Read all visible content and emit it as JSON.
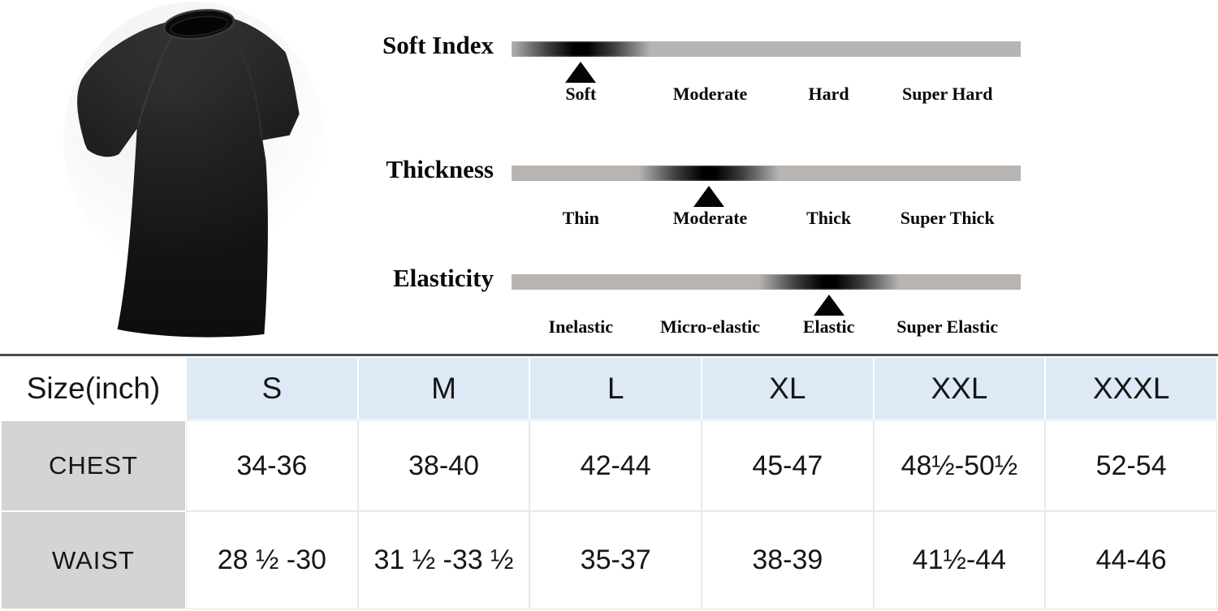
{
  "product_image": {
    "alt": "black crew-neck short-sleeve t-shirt"
  },
  "scales": {
    "bar_color": "#b7b4b2",
    "marker_color": "#050505",
    "rows": [
      {
        "title": "Soft Index",
        "marker_pos": 13.6,
        "labels": [
          {
            "text": "Soft",
            "pos": 13.6
          },
          {
            "text": "Moderate",
            "pos": 39.0
          },
          {
            "text": "Hard",
            "pos": 62.3
          },
          {
            "text": "Super Hard",
            "pos": 85.6
          }
        ]
      },
      {
        "title": "Thickness",
        "marker_pos": 38.8,
        "labels": [
          {
            "text": "Thin",
            "pos": 13.6
          },
          {
            "text": "Moderate",
            "pos": 39.0
          },
          {
            "text": "Thick",
            "pos": 62.3
          },
          {
            "text": "Super Thick",
            "pos": 85.6
          }
        ]
      },
      {
        "title": "Elasticity",
        "marker_pos": 62.3,
        "labels": [
          {
            "text": "Inelastic",
            "pos": 13.6
          },
          {
            "text": "Micro-elastic",
            "pos": 39.0
          },
          {
            "text": "Elastic",
            "pos": 62.3
          },
          {
            "text": "Super Elastic",
            "pos": 85.6
          }
        ]
      }
    ]
  },
  "size_table": {
    "corner_label": "Size(inch)",
    "header_bg": "#dde9f5",
    "label_bg": "#d5d4d2",
    "columns": [
      "S",
      "M",
      "L",
      "XL",
      "XXL",
      "XXXL"
    ],
    "rows": [
      {
        "label": "CHEST",
        "values": [
          "34-36",
          "38-40",
          "42-44",
          "45-47",
          "48½-50½",
          "52-54"
        ]
      },
      {
        "label": "WAIST",
        "values": [
          "28 ½ -30",
          "31 ½ -33 ½",
          "35-37",
          "38-39",
          "41½-44",
          "44-46"
        ]
      }
    ]
  }
}
